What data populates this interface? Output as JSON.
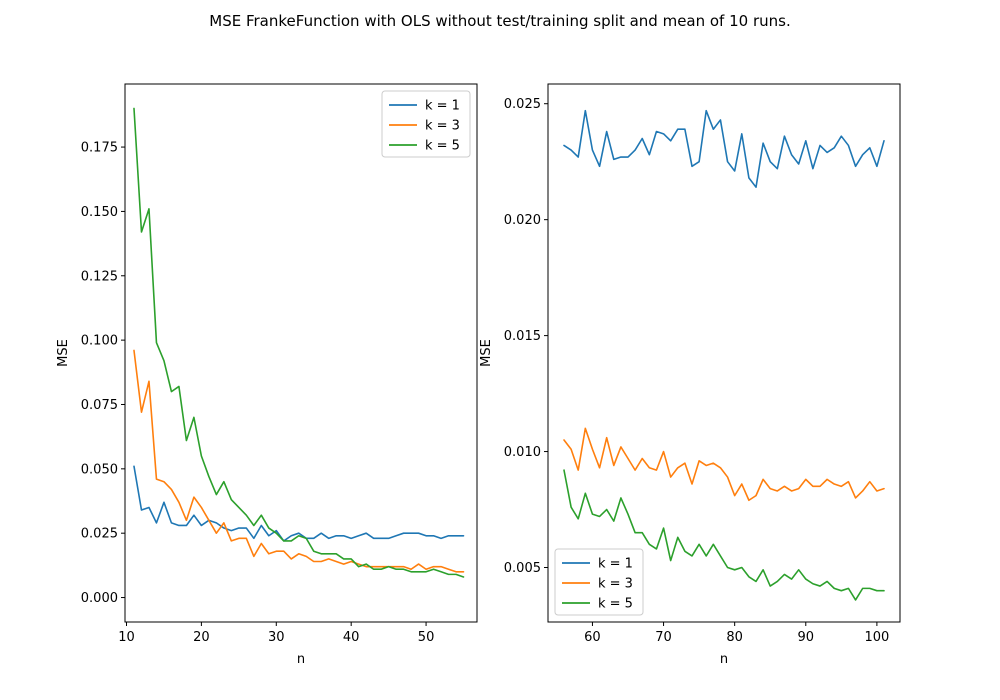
{
  "figure": {
    "title": "MSE FrankeFunction with OLS without test/training split and mean of 10 runs."
  },
  "colors": {
    "k1": "#1f77b4",
    "k3": "#ff7f0e",
    "k5": "#2ca02c"
  },
  "chart_data": [
    {
      "type": "line",
      "xlabel": "n",
      "ylabel": "MSE",
      "xlim": [
        9.8,
        56.8
      ],
      "ylim": [
        -0.0095,
        0.1995
      ],
      "xticks": [
        10,
        20,
        30,
        40,
        50
      ],
      "yticks": [
        0.0,
        0.025,
        0.05,
        0.075,
        0.1,
        0.125,
        0.15,
        0.175
      ],
      "ytick_labels": [
        "0.000",
        "0.025",
        "0.050",
        "0.075",
        "0.100",
        "0.125",
        "0.150",
        "0.175"
      ],
      "legend": "top-right",
      "grid": false,
      "x": [
        11,
        12,
        13,
        14,
        15,
        16,
        17,
        18,
        19,
        20,
        21,
        22,
        23,
        24,
        25,
        26,
        27,
        28,
        29,
        30,
        31,
        32,
        33,
        34,
        35,
        36,
        37,
        38,
        39,
        40,
        41,
        42,
        43,
        44,
        45,
        46,
        47,
        48,
        49,
        50,
        51,
        52,
        53,
        54,
        55
      ],
      "series": [
        {
          "name": "k = 1",
          "color": "#1f77b4",
          "values": [
            0.051,
            0.034,
            0.035,
            0.029,
            0.037,
            0.029,
            0.028,
            0.028,
            0.032,
            0.028,
            0.03,
            0.029,
            0.027,
            0.026,
            0.027,
            0.027,
            0.023,
            0.028,
            0.024,
            0.026,
            0.022,
            0.024,
            0.025,
            0.023,
            0.023,
            0.025,
            0.023,
            0.024,
            0.024,
            0.023,
            0.024,
            0.025,
            0.023,
            0.023,
            0.023,
            0.024,
            0.025,
            0.025,
            0.025,
            0.024,
            0.024,
            0.023,
            0.024,
            0.024,
            0.024
          ]
        },
        {
          "name": "k = 3",
          "color": "#ff7f0e",
          "values": [
            0.096,
            0.072,
            0.084,
            0.046,
            0.045,
            0.042,
            0.037,
            0.03,
            0.039,
            0.035,
            0.03,
            0.025,
            0.029,
            0.022,
            0.023,
            0.023,
            0.016,
            0.021,
            0.017,
            0.018,
            0.018,
            0.015,
            0.017,
            0.016,
            0.014,
            0.014,
            0.015,
            0.014,
            0.013,
            0.014,
            0.013,
            0.012,
            0.012,
            0.012,
            0.012,
            0.012,
            0.012,
            0.011,
            0.013,
            0.011,
            0.012,
            0.012,
            0.011,
            0.01,
            0.01
          ]
        },
        {
          "name": "k = 5",
          "color": "#2ca02c",
          "values": [
            0.19,
            0.142,
            0.151,
            0.099,
            0.092,
            0.08,
            0.082,
            0.061,
            0.07,
            0.055,
            0.047,
            0.04,
            0.045,
            0.038,
            0.035,
            0.032,
            0.028,
            0.032,
            0.027,
            0.025,
            0.022,
            0.022,
            0.024,
            0.023,
            0.018,
            0.017,
            0.017,
            0.017,
            0.015,
            0.015,
            0.012,
            0.013,
            0.011,
            0.011,
            0.012,
            0.011,
            0.011,
            0.01,
            0.01,
            0.01,
            0.011,
            0.01,
            0.009,
            0.009,
            0.008
          ]
        }
      ]
    },
    {
      "type": "line",
      "xlabel": "n",
      "ylabel": "MSE",
      "xlim": [
        53.75,
        103.25
      ],
      "ylim": [
        0.00265,
        0.02585
      ],
      "xticks": [
        60,
        70,
        80,
        90,
        100
      ],
      "yticks": [
        0.005,
        0.01,
        0.015,
        0.02,
        0.025
      ],
      "ytick_labels": [
        "0.005",
        "0.010",
        "0.015",
        "0.020",
        "0.025"
      ],
      "legend": "bottom-left",
      "grid": false,
      "x": [
        56,
        57,
        58,
        59,
        60,
        61,
        62,
        63,
        64,
        65,
        66,
        67,
        68,
        69,
        70,
        71,
        72,
        73,
        74,
        75,
        76,
        77,
        78,
        79,
        80,
        81,
        82,
        83,
        84,
        85,
        86,
        87,
        88,
        89,
        90,
        91,
        92,
        93,
        94,
        95,
        96,
        97,
        98,
        99,
        100,
        101
      ],
      "series": [
        {
          "name": "k = 1",
          "color": "#1f77b4",
          "values": [
            0.0232,
            0.023,
            0.0227,
            0.0247,
            0.023,
            0.0223,
            0.0238,
            0.0226,
            0.0227,
            0.0227,
            0.023,
            0.0235,
            0.0228,
            0.0238,
            0.0237,
            0.0234,
            0.0239,
            0.0239,
            0.0223,
            0.0225,
            0.0247,
            0.0239,
            0.0243,
            0.0225,
            0.0221,
            0.0237,
            0.0218,
            0.0214,
            0.0233,
            0.0225,
            0.0222,
            0.0236,
            0.0228,
            0.0224,
            0.0234,
            0.0222,
            0.0232,
            0.0229,
            0.0231,
            0.0236,
            0.0232,
            0.0223,
            0.0228,
            0.0231,
            0.0223,
            0.0234
          ]
        },
        {
          "name": "k = 3",
          "color": "#ff7f0e",
          "values": [
            0.0105,
            0.0101,
            0.0092,
            0.011,
            0.0101,
            0.0093,
            0.0106,
            0.0094,
            0.0102,
            0.0097,
            0.0092,
            0.0097,
            0.0093,
            0.0092,
            0.01,
            0.0089,
            0.0093,
            0.0095,
            0.0086,
            0.0096,
            0.0094,
            0.0095,
            0.0093,
            0.0089,
            0.0081,
            0.0086,
            0.0079,
            0.0081,
            0.0088,
            0.0084,
            0.0083,
            0.0085,
            0.0083,
            0.0084,
            0.0088,
            0.0085,
            0.0085,
            0.0088,
            0.0086,
            0.0085,
            0.0087,
            0.008,
            0.0083,
            0.0087,
            0.0083,
            0.0084
          ]
        },
        {
          "name": "k = 5",
          "color": "#2ca02c",
          "values": [
            0.0092,
            0.0076,
            0.0071,
            0.0082,
            0.0073,
            0.0072,
            0.0075,
            0.007,
            0.008,
            0.0073,
            0.0065,
            0.0065,
            0.006,
            0.0058,
            0.0067,
            0.0053,
            0.0063,
            0.0057,
            0.0055,
            0.006,
            0.0055,
            0.006,
            0.0055,
            0.005,
            0.0049,
            0.005,
            0.0046,
            0.0044,
            0.0049,
            0.0042,
            0.0044,
            0.0047,
            0.0045,
            0.0049,
            0.0045,
            0.0043,
            0.0042,
            0.0044,
            0.0041,
            0.004,
            0.0041,
            0.0036,
            0.0041,
            0.0041,
            0.004,
            0.004
          ]
        }
      ]
    }
  ]
}
